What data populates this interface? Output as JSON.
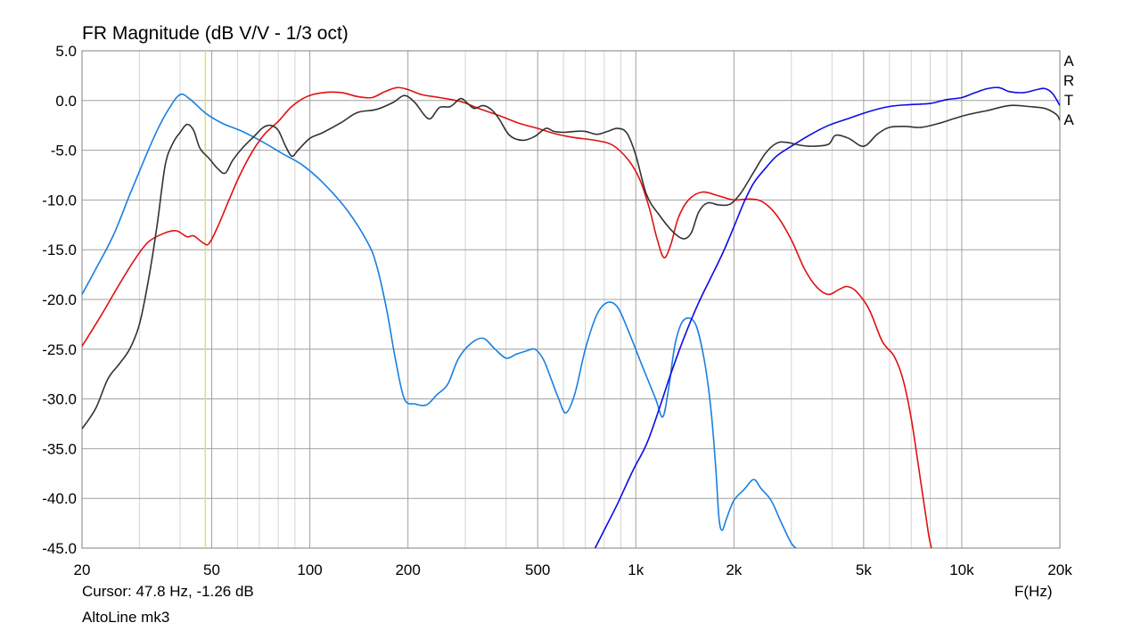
{
  "title": "FR Magnitude (dB V/V - 1/3 oct)",
  "cursor_readout": "Cursor: 47.8 Hz, -1.26 dB",
  "device_name": "AltoLine mk3",
  "x_axis_label": "F(Hz)",
  "watermark_letters": [
    "A",
    "R",
    "T",
    "A"
  ],
  "colors": {
    "background": "#ffffff",
    "grid_major": "#a0a0a0",
    "grid_minor": "#d4d4d4",
    "cursor_line": "#e0e070",
    "frame": "#808080"
  },
  "chart_data": {
    "type": "line",
    "x_scale": "log",
    "xlim": [
      20,
      20000
    ],
    "ylim": [
      -45,
      5
    ],
    "grid": true,
    "y_ticks": [
      {
        "value": 5,
        "label": "5.0"
      },
      {
        "value": 0,
        "label": "0.0"
      },
      {
        "value": -5,
        "label": "-5.0"
      },
      {
        "value": -10,
        "label": "-10.0"
      },
      {
        "value": -15,
        "label": "-15.0"
      },
      {
        "value": -20,
        "label": "-20.0"
      },
      {
        "value": -25,
        "label": "-25.0"
      },
      {
        "value": -30,
        "label": "-30.0"
      },
      {
        "value": -35,
        "label": "-35.0"
      },
      {
        "value": -40,
        "label": "-40.0"
      },
      {
        "value": -45,
        "label": "-45.0"
      }
    ],
    "x_ticks": [
      {
        "value": 20,
        "label": "20"
      },
      {
        "value": 50,
        "label": "50"
      },
      {
        "value": 100,
        "label": "100"
      },
      {
        "value": 200,
        "label": "200"
      },
      {
        "value": 500,
        "label": "500"
      },
      {
        "value": 1000,
        "label": "1k"
      },
      {
        "value": 2000,
        "label": "2k"
      },
      {
        "value": 5000,
        "label": "5k"
      },
      {
        "value": 10000,
        "label": "10k"
      },
      {
        "value": 20000,
        "label": "20k"
      }
    ],
    "cursor_freq": 47.8,
    "series": [
      {
        "color": "#1a7fe0",
        "points": [
          [
            20,
            -19.5
          ],
          [
            22,
            -17
          ],
          [
            25,
            -13.5
          ],
          [
            28,
            -9.5
          ],
          [
            31,
            -6
          ],
          [
            34,
            -3
          ],
          [
            37,
            -0.8
          ],
          [
            40,
            0.6
          ],
          [
            43,
            0.1
          ],
          [
            48,
            -1.3
          ],
          [
            54,
            -2.3
          ],
          [
            62,
            -3.1
          ],
          [
            72,
            -4.2
          ],
          [
            82,
            -5.3
          ],
          [
            95,
            -6.5
          ],
          [
            110,
            -8.3
          ],
          [
            130,
            -11
          ],
          [
            150,
            -14.2
          ],
          [
            160,
            -16.5
          ],
          [
            172,
            -21
          ],
          [
            183,
            -26
          ],
          [
            195,
            -30
          ],
          [
            210,
            -30.5
          ],
          [
            228,
            -30.6
          ],
          [
            245,
            -29.6
          ],
          [
            265,
            -28.5
          ],
          [
            285,
            -26
          ],
          [
            310,
            -24.5
          ],
          [
            340,
            -23.9
          ],
          [
            370,
            -25
          ],
          [
            400,
            -25.9
          ],
          [
            430,
            -25.5
          ],
          [
            460,
            -25.2
          ],
          [
            490,
            -25
          ],
          [
            520,
            -26
          ],
          [
            550,
            -28
          ],
          [
            580,
            -30
          ],
          [
            610,
            -31.4
          ],
          [
            650,
            -29.5
          ],
          [
            700,
            -25
          ],
          [
            760,
            -21.5
          ],
          [
            820,
            -20.3
          ],
          [
            880,
            -20.8
          ],
          [
            950,
            -23.2
          ],
          [
            1050,
            -26.8
          ],
          [
            1150,
            -30
          ],
          [
            1210,
            -31.8
          ],
          [
            1260,
            -29
          ],
          [
            1320,
            -24.5
          ],
          [
            1400,
            -22.1
          ],
          [
            1520,
            -22.4
          ],
          [
            1620,
            -26
          ],
          [
            1700,
            -31
          ],
          [
            1760,
            -37
          ],
          [
            1800,
            -42
          ],
          [
            1840,
            -43.2
          ],
          [
            1900,
            -42
          ],
          [
            2000,
            -40.2
          ],
          [
            2150,
            -39.1
          ],
          [
            2300,
            -38.1
          ],
          [
            2420,
            -39
          ],
          [
            2600,
            -40.2
          ],
          [
            2800,
            -42.5
          ],
          [
            3000,
            -44.5
          ],
          [
            3150,
            -45.2
          ]
        ]
      },
      {
        "color": "#e01010",
        "points": [
          [
            20,
            -24.7
          ],
          [
            23,
            -21.5
          ],
          [
            26,
            -18.5
          ],
          [
            29,
            -16
          ],
          [
            32,
            -14.2
          ],
          [
            36,
            -13.3
          ],
          [
            39,
            -13.1
          ],
          [
            42,
            -13.7
          ],
          [
            44,
            -13.6
          ],
          [
            47,
            -14.3
          ],
          [
            49,
            -14.4
          ],
          [
            52,
            -12.8
          ],
          [
            56,
            -10.3
          ],
          [
            61,
            -7.5
          ],
          [
            67,
            -5
          ],
          [
            73,
            -3.3
          ],
          [
            80,
            -2.1
          ],
          [
            88,
            -0.6
          ],
          [
            98,
            0.4
          ],
          [
            110,
            0.8
          ],
          [
            125,
            0.8
          ],
          [
            140,
            0.4
          ],
          [
            155,
            0.3
          ],
          [
            170,
            0.9
          ],
          [
            185,
            1.3
          ],
          [
            200,
            1.1
          ],
          [
            220,
            0.6
          ],
          [
            250,
            0.3
          ],
          [
            290,
            -0.1
          ],
          [
            330,
            -0.8
          ],
          [
            380,
            -1.5
          ],
          [
            440,
            -2.3
          ],
          [
            500,
            -2.8
          ],
          [
            560,
            -3.3
          ],
          [
            640,
            -3.7
          ],
          [
            750,
            -4
          ],
          [
            850,
            -4.5
          ],
          [
            950,
            -6
          ],
          [
            1030,
            -8
          ],
          [
            1100,
            -10.8
          ],
          [
            1160,
            -13.8
          ],
          [
            1220,
            -15.8
          ],
          [
            1280,
            -14.5
          ],
          [
            1350,
            -11.8
          ],
          [
            1450,
            -10
          ],
          [
            1600,
            -9.2
          ],
          [
            1800,
            -9.6
          ],
          [
            2000,
            -10
          ],
          [
            2250,
            -9.9
          ],
          [
            2450,
            -10.2
          ],
          [
            2700,
            -11.5
          ],
          [
            3000,
            -14
          ],
          [
            3300,
            -17
          ],
          [
            3600,
            -18.8
          ],
          [
            3900,
            -19.5
          ],
          [
            4200,
            -19
          ],
          [
            4450,
            -18.7
          ],
          [
            4750,
            -19.2
          ],
          [
            5200,
            -21
          ],
          [
            5700,
            -24.2
          ],
          [
            6200,
            -25.7
          ],
          [
            6600,
            -28
          ],
          [
            7000,
            -32
          ],
          [
            7500,
            -38.5
          ],
          [
            7900,
            -43.5
          ],
          [
            8100,
            -45.2
          ]
        ]
      },
      {
        "color": "#0a0ae8",
        "points": [
          [
            745,
            -45.2
          ],
          [
            800,
            -43.2
          ],
          [
            880,
            -40.5
          ],
          [
            980,
            -37.2
          ],
          [
            1080,
            -34.5
          ],
          [
            1180,
            -31
          ],
          [
            1280,
            -27.5
          ],
          [
            1400,
            -24
          ],
          [
            1550,
            -20.5
          ],
          [
            1700,
            -17.8
          ],
          [
            1850,
            -15.3
          ],
          [
            2000,
            -12.7
          ],
          [
            2150,
            -10.2
          ],
          [
            2300,
            -8.3
          ],
          [
            2500,
            -6.8
          ],
          [
            2700,
            -5.6
          ],
          [
            3000,
            -4.6
          ],
          [
            3400,
            -3.5
          ],
          [
            3900,
            -2.5
          ],
          [
            4500,
            -1.8
          ],
          [
            5200,
            -1.1
          ],
          [
            6000,
            -0.6
          ],
          [
            7000,
            -0.4
          ],
          [
            8000,
            -0.3
          ],
          [
            9000,
            0.1
          ],
          [
            10000,
            0.3
          ],
          [
            11000,
            0.8
          ],
          [
            12000,
            1.2
          ],
          [
            13000,
            1.3
          ],
          [
            14000,
            0.9
          ],
          [
            15500,
            0.8
          ],
          [
            17000,
            1.1
          ],
          [
            18000,
            1.2
          ],
          [
            19000,
            0.7
          ],
          [
            20000,
            -0.5
          ]
        ]
      },
      {
        "color": "#333333",
        "points": [
          [
            20,
            -33
          ],
          [
            22,
            -31
          ],
          [
            24,
            -28
          ],
          [
            26,
            -26.5
          ],
          [
            28,
            -25
          ],
          [
            30,
            -22.5
          ],
          [
            32,
            -18
          ],
          [
            34,
            -12.5
          ],
          [
            36,
            -6.5
          ],
          [
            38,
            -4.3
          ],
          [
            40,
            -3.2
          ],
          [
            42,
            -2.4
          ],
          [
            44,
            -3
          ],
          [
            46,
            -4.8
          ],
          [
            49,
            -5.8
          ],
          [
            52,
            -6.8
          ],
          [
            55,
            -7.3
          ],
          [
            58,
            -6
          ],
          [
            62,
            -4.8
          ],
          [
            67,
            -3.7
          ],
          [
            72,
            -2.7
          ],
          [
            76,
            -2.5
          ],
          [
            80,
            -3
          ],
          [
            84,
            -4.5
          ],
          [
            88,
            -5.6
          ],
          [
            92,
            -5
          ],
          [
            100,
            -3.8
          ],
          [
            110,
            -3.2
          ],
          [
            125,
            -2.2
          ],
          [
            140,
            -1.2
          ],
          [
            160,
            -0.9
          ],
          [
            180,
            -0.2
          ],
          [
            195,
            0.5
          ],
          [
            210,
            -0.2
          ],
          [
            225,
            -1.5
          ],
          [
            235,
            -1.8
          ],
          [
            250,
            -0.7
          ],
          [
            270,
            -0.6
          ],
          [
            290,
            0.2
          ],
          [
            305,
            -0.3
          ],
          [
            320,
            -0.8
          ],
          [
            340,
            -0.5
          ],
          [
            360,
            -0.9
          ],
          [
            380,
            -1.8
          ],
          [
            410,
            -3.5
          ],
          [
            450,
            -4
          ],
          [
            490,
            -3.6
          ],
          [
            530,
            -2.8
          ],
          [
            560,
            -3.1
          ],
          [
            600,
            -3.2
          ],
          [
            650,
            -3.1
          ],
          [
            700,
            -3.1
          ],
          [
            760,
            -3.4
          ],
          [
            820,
            -3.1
          ],
          [
            880,
            -2.8
          ],
          [
            940,
            -3.3
          ],
          [
            1000,
            -5.5
          ],
          [
            1080,
            -9.5
          ],
          [
            1180,
            -11.5
          ],
          [
            1300,
            -13.2
          ],
          [
            1400,
            -13.9
          ],
          [
            1480,
            -13.3
          ],
          [
            1560,
            -11.2
          ],
          [
            1660,
            -10.3
          ],
          [
            1800,
            -10.5
          ],
          [
            1950,
            -10.4
          ],
          [
            2100,
            -9.3
          ],
          [
            2300,
            -7.2
          ],
          [
            2500,
            -5.3
          ],
          [
            2700,
            -4.3
          ],
          [
            2900,
            -4.2
          ],
          [
            3200,
            -4.5
          ],
          [
            3500,
            -4.6
          ],
          [
            3900,
            -4.4
          ],
          [
            4100,
            -3.5
          ],
          [
            4500,
            -3.8
          ],
          [
            5000,
            -4.6
          ],
          [
            5500,
            -3.4
          ],
          [
            6000,
            -2.7
          ],
          [
            6700,
            -2.6
          ],
          [
            7500,
            -2.7
          ],
          [
            8500,
            -2.3
          ],
          [
            9500,
            -1.8
          ],
          [
            10500,
            -1.4
          ],
          [
            12000,
            -1
          ],
          [
            14000,
            -0.5
          ],
          [
            16000,
            -0.6
          ],
          [
            18000,
            -0.8
          ],
          [
            19500,
            -1.4
          ],
          [
            20000,
            -2
          ]
        ]
      }
    ]
  }
}
